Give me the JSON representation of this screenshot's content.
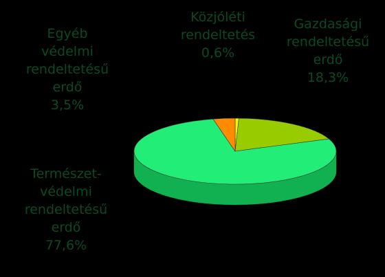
{
  "chart_data": {
    "type": "pie",
    "slices": [
      {
        "label_lines": [
          "Közjóléti",
          "rendeltetés"
        ],
        "value_text": "0,6%",
        "value": 0.6,
        "color": "#f5f500",
        "side_color": "#b0b000"
      },
      {
        "label_lines": [
          "Gazdasági",
          "rendeltetésű",
          "erdő"
        ],
        "value_text": "18,3%",
        "value": 18.3,
        "color": "#99cc00",
        "side_color": "#6b8f00"
      },
      {
        "label_lines": [
          "Természet-",
          "védelmi",
          "rendeltetésű",
          "erdő"
        ],
        "value_text": "77,6%",
        "value": 77.6,
        "color": "#22ee77",
        "side_color": "#11b050"
      },
      {
        "label_lines": [
          "Egyéb",
          "védelmi",
          "rendeltetésű",
          "erdő"
        ],
        "value_text": "3,5%",
        "value": 3.5,
        "color": "#ff8c00",
        "side_color": "#c06000"
      }
    ],
    "label_color": "#0a4a22",
    "background": "#000000"
  }
}
